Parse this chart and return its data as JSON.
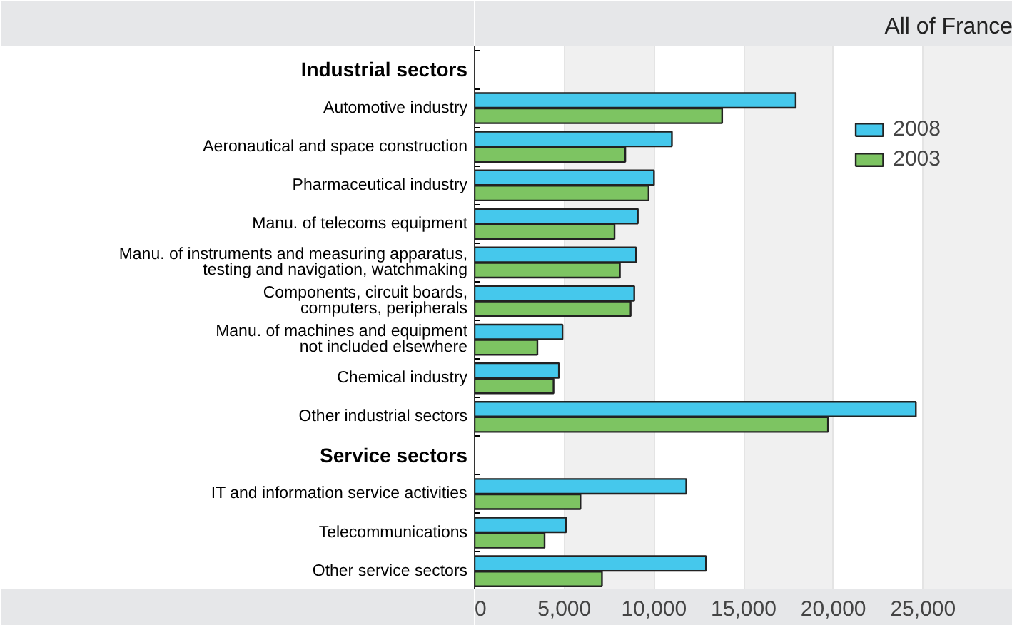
{
  "chart_data": {
    "type": "bar",
    "orientation": "horizontal",
    "subtitle": "All of France",
    "categories": [
      "Industrial sectors",
      "Automotive industry",
      "Aeronautical and space construction",
      "Pharmaceutical industry",
      "Manu. of telecoms equipment",
      "Manu. of instruments and measuring apparatus,\ntesting and navigation, watchmaking",
      "Components, circuit boards,\ncomputers, peripherals",
      "Manu. of machines and equipment\nnot included elsewhere",
      "Chemical industry",
      "Other industrial sectors",
      "Service sectors",
      "IT and information service activities",
      "Telecommunications",
      "Other service sectors"
    ],
    "series": [
      {
        "name": "2008",
        "color": "#45c8ec",
        "values": [
          null,
          17900,
          11000,
          10000,
          9100,
          9000,
          8900,
          4900,
          4700,
          24600,
          null,
          11800,
          5100,
          12900
        ]
      },
      {
        "name": "2003",
        "color": "#7dc462",
        "values": [
          null,
          13800,
          8400,
          9700,
          7800,
          8100,
          8700,
          3500,
          4400,
          19700,
          null,
          5900,
          3900,
          7100
        ]
      }
    ],
    "xlim": [
      0,
      30000
    ],
    "xticks": [
      0,
      {
        "value": 5000,
        "label": "5,000"
      },
      {
        "value": 10000,
        "label": "10,000"
      },
      {
        "value": 15000,
        "label": "15,000"
      },
      {
        "value": 20000,
        "label": "20,000"
      },
      {
        "value": 25000,
        "label": "25,000"
      }
    ],
    "grid": "x",
    "legend": "top right"
  }
}
